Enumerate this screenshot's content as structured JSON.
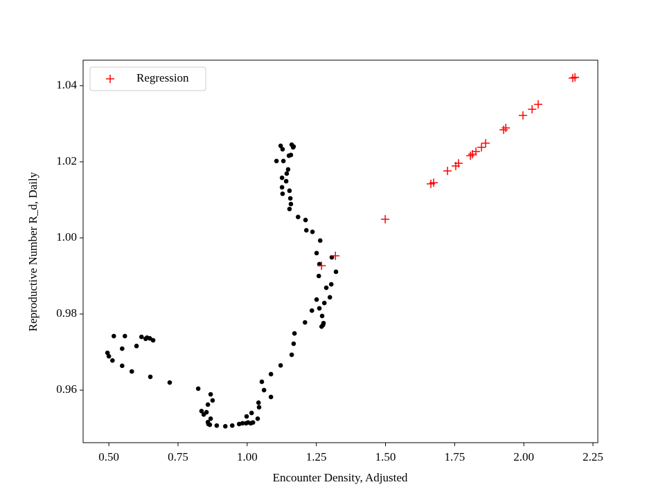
{
  "chart_data": {
    "type": "scatter",
    "xlabel": "Encounter Density, Adjusted",
    "ylabel": "Reproductive Number R_d, Daily",
    "xlim": [
      0.407,
      2.2675
    ],
    "ylim": [
      0.9462,
      1.0467
    ],
    "xticks": [
      {
        "value": 0.5,
        "label": "0.50"
      },
      0.75,
      {
        "value": 1.0,
        "label": "1.00"
      },
      1.25,
      {
        "value": 1.5,
        "label": "1.50"
      },
      1.75,
      {
        "value": 2.0,
        "label": "2.00"
      },
      2.25
    ],
    "yticks": [
      0.96,
      0.98,
      {
        "value": 1.0,
        "label": "1.00"
      },
      1.02,
      1.04
    ],
    "grid": false,
    "legend": "upper left",
    "series": [
      {
        "color": "#000000",
        "marker": "o",
        "x": [
          0.518,
          0.558,
          0.495,
          0.5,
          0.513,
          0.548,
          0.548,
          0.583,
          0.6,
          0.618,
          0.633,
          0.638,
          0.648,
          0.66,
          0.65,
          0.72,
          0.823,
          0.835,
          0.843,
          0.853,
          0.868,
          0.875,
          0.858,
          0.868,
          0.858,
          0.86,
          0.865,
          0.89,
          0.921,
          0.946,
          0.971,
          0.983,
          0.996,
          1.003,
          1.013,
          1.021,
          0.998,
          1.016,
          1.038,
          1.041,
          1.043,
          1.053,
          1.061,
          1.086,
          1.086,
          1.121,
          1.161,
          1.168,
          1.171,
          1.209,
          1.234,
          1.251,
          1.261,
          1.269,
          1.274,
          1.279,
          1.271,
          1.276,
          1.286,
          1.299,
          1.304,
          1.321,
          1.306,
          1.264,
          1.261,
          1.259,
          1.236,
          1.251,
          1.214,
          1.211,
          1.184,
          1.153,
          1.158,
          1.156,
          1.153,
          1.141,
          1.143,
          1.148,
          1.131,
          1.126,
          1.126,
          1.128,
          1.106,
          1.121,
          1.128,
          1.151,
          1.161,
          1.168,
          1.158,
          1.166
        ],
        "values": [
          0.9742,
          0.9742,
          0.9698,
          0.9689,
          0.9678,
          0.9709,
          0.9664,
          0.9649,
          0.9716,
          0.974,
          0.9735,
          0.9738,
          0.9736,
          0.9731,
          0.9635,
          0.962,
          0.9604,
          0.9545,
          0.9536,
          0.9542,
          0.9589,
          0.9573,
          0.9562,
          0.9525,
          0.9516,
          0.9511,
          0.9509,
          0.9507,
          0.9505,
          0.9507,
          0.9511,
          0.9513,
          0.9513,
          0.9515,
          0.9513,
          0.9515,
          0.9531,
          0.954,
          0.9525,
          0.9567,
          0.9555,
          0.9622,
          0.96,
          0.9582,
          0.9642,
          0.9665,
          0.9693,
          0.9722,
          0.9749,
          0.9778,
          0.9809,
          0.9838,
          0.9815,
          0.9767,
          0.9771,
          0.9829,
          0.9795,
          0.9776,
          0.9869,
          0.9844,
          0.9878,
          0.9911,
          0.9949,
          0.9993,
          0.9931,
          0.99,
          1.0016,
          0.996,
          1.002,
          1.0047,
          1.0055,
          1.0076,
          1.0089,
          1.0104,
          1.0124,
          1.0149,
          1.0169,
          1.018,
          1.0202,
          1.0158,
          1.0133,
          1.0116,
          1.0202,
          1.0242,
          1.0233,
          1.0216,
          1.0245,
          1.024,
          1.0218,
          1.0238
        ]
      },
      {
        "name": "Regression",
        "color": "#ff0000",
        "marker": "+",
        "x": [
          1.269,
          1.319,
          1.499,
          1.664,
          1.674,
          1.724,
          1.754,
          1.764,
          1.807,
          1.814,
          1.827,
          1.847,
          1.862,
          1.927,
          1.935,
          1.997,
          2.03,
          2.052,
          2.177,
          2.185
        ],
        "values": [
          0.9927,
          0.9953,
          1.0049,
          1.0142,
          1.0145,
          1.0176,
          1.0189,
          1.0196,
          1.0216,
          1.022,
          1.0227,
          1.0238,
          1.0249,
          1.0284,
          1.0289,
          1.0322,
          1.0338,
          1.0351,
          1.042,
          1.0422
        ]
      }
    ]
  }
}
